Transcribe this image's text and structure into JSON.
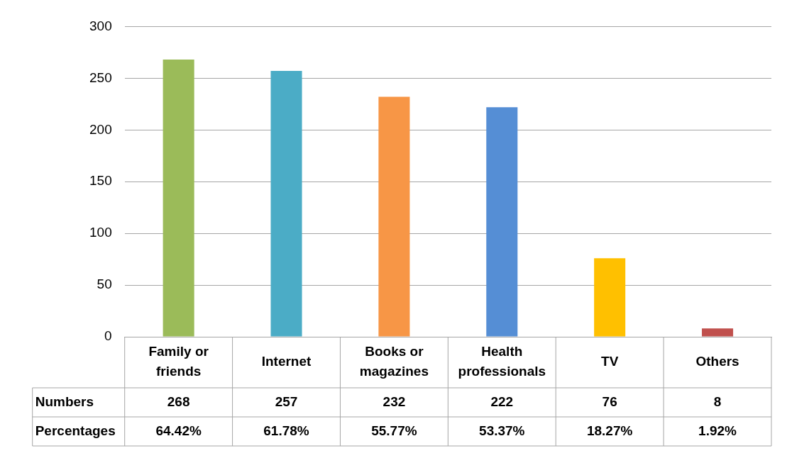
{
  "chart_data": {
    "type": "bar",
    "categories": [
      "Family or friends",
      "Internet",
      "Books or magazines",
      "Health professionals",
      "TV",
      "Others"
    ],
    "values": [
      268,
      257,
      232,
      222,
      76,
      8
    ],
    "colors": [
      "#9bbb59",
      "#4bacc6",
      "#f79646",
      "#558ed5",
      "#ffc000",
      "#c0504d"
    ],
    "ylim": [
      0,
      300
    ],
    "yticks": [
      0,
      50,
      100,
      150,
      200,
      250,
      300
    ],
    "grid": "y",
    "legend": false,
    "value_labels": [
      "268",
      "257",
      "232",
      "222",
      "76",
      "8"
    ],
    "annotations": [
      "Numbers",
      "Percentages",
      "64.42%",
      "61.78%",
      "55.77%",
      "53.37%",
      "18.27%",
      "1.92%"
    ]
  }
}
